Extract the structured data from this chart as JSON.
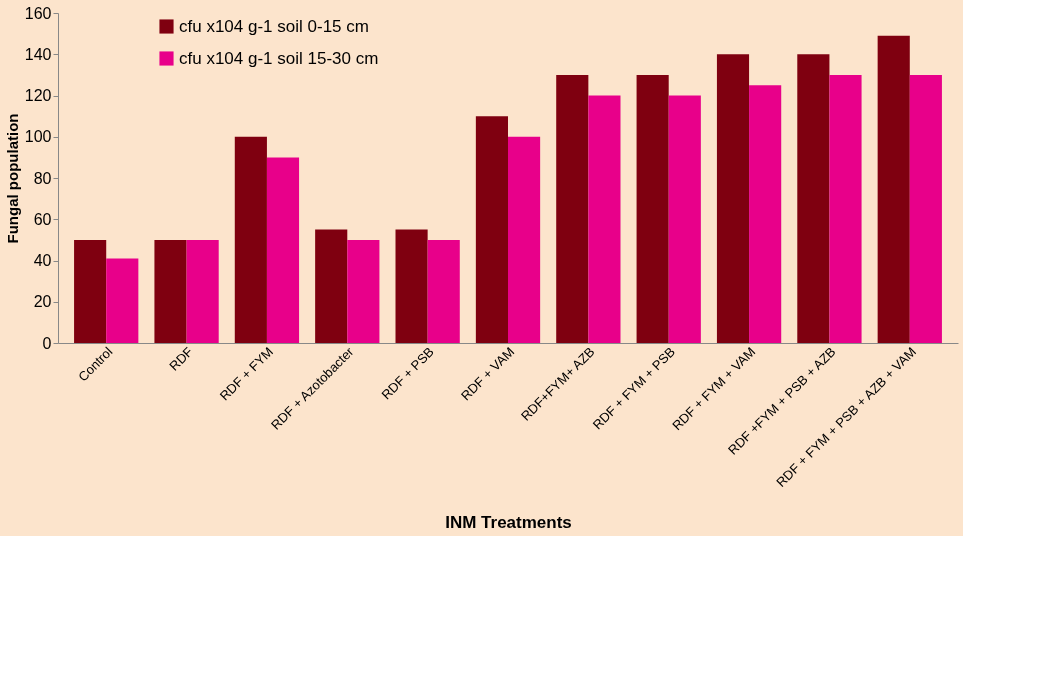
{
  "chart_data": {
    "type": "bar",
    "xlabel": "INM Treatments",
    "ylabel": "Fungal population",
    "categories": [
      "Control",
      "RDF",
      "RDF + FYM",
      "RDF + Azotobacter",
      "RDF + PSB",
      "RDF + VAM",
      "RDF+FYM+ AZB",
      "RDF + FYM + PSB",
      "RDF + FYM + VAM",
      "RDF +FYM + PSB + AZB",
      "RDF + FYM + PSB + AZB + VAM"
    ],
    "series": [
      {
        "name": "cfu x104 g-1 soil 0-15 cm",
        "color": "#7f0010",
        "values": [
          50,
          50,
          100,
          55,
          55,
          110,
          130,
          130,
          140,
          140,
          149
        ]
      },
      {
        "name": "cfu x104 g-1 soil 15-30 cm",
        "color": "#e8008a",
        "values": [
          41,
          50,
          90,
          50,
          50,
          100,
          120,
          120,
          125,
          130,
          130
        ]
      }
    ],
    "ylim": [
      0,
      160
    ],
    "yticks": [
      0,
      20,
      40,
      60,
      80,
      100,
      120,
      140,
      160
    ],
    "grid": false,
    "legend": "top left"
  }
}
